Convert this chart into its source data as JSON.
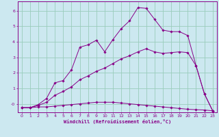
{
  "xlabel": "Windchill (Refroidissement éolien,°C)",
  "bg_color": "#cce8f0",
  "line_color": "#880088",
  "grid_color": "#99ccbb",
  "xticks": [
    0,
    1,
    2,
    3,
    4,
    5,
    6,
    7,
    8,
    9,
    10,
    11,
    12,
    13,
    14,
    15,
    16,
    17,
    18,
    19,
    20,
    21,
    22,
    23
  ],
  "yticks": [
    0,
    1,
    2,
    3,
    4,
    5,
    6
  ],
  "ylim": [
    -0.55,
    6.6
  ],
  "xlim": [
    -0.5,
    23.5
  ],
  "line1_x": [
    0,
    1,
    2,
    3,
    4,
    5,
    6,
    7,
    8,
    9,
    10,
    11,
    12,
    13,
    14,
    15,
    16,
    17,
    18,
    19,
    20,
    21,
    22,
    23
  ],
  "line1_y": [
    -0.25,
    -0.25,
    -0.2,
    -0.2,
    -0.15,
    -0.1,
    -0.05,
    0.0,
    0.05,
    0.1,
    0.1,
    0.1,
    0.05,
    0.0,
    -0.05,
    -0.1,
    -0.15,
    -0.2,
    -0.25,
    -0.3,
    -0.35,
    -0.38,
    -0.4,
    -0.45
  ],
  "line2_x": [
    0,
    1,
    2,
    3,
    4,
    5,
    6,
    7,
    8,
    9,
    10,
    11,
    12,
    13,
    14,
    15,
    16,
    17,
    18,
    19,
    20,
    21,
    22,
    23
  ],
  "line2_y": [
    -0.25,
    -0.25,
    -0.1,
    0.1,
    0.55,
    0.8,
    1.1,
    1.55,
    1.8,
    2.1,
    2.3,
    2.6,
    2.9,
    3.1,
    3.35,
    3.55,
    3.35,
    3.25,
    3.3,
    3.35,
    3.3,
    2.45,
    0.65,
    -0.45
  ],
  "line3_x": [
    0,
    1,
    2,
    3,
    4,
    5,
    6,
    7,
    8,
    9,
    10,
    11,
    12,
    13,
    14,
    15,
    16,
    17,
    18,
    19,
    20,
    21,
    22,
    23
  ],
  "line3_y": [
    -0.25,
    -0.25,
    -0.05,
    0.35,
    1.35,
    1.5,
    2.2,
    3.65,
    3.8,
    4.1,
    3.35,
    4.15,
    4.85,
    5.35,
    6.2,
    6.15,
    5.45,
    4.75,
    4.65,
    4.65,
    4.4,
    2.45,
    0.65,
    -0.45
  ]
}
